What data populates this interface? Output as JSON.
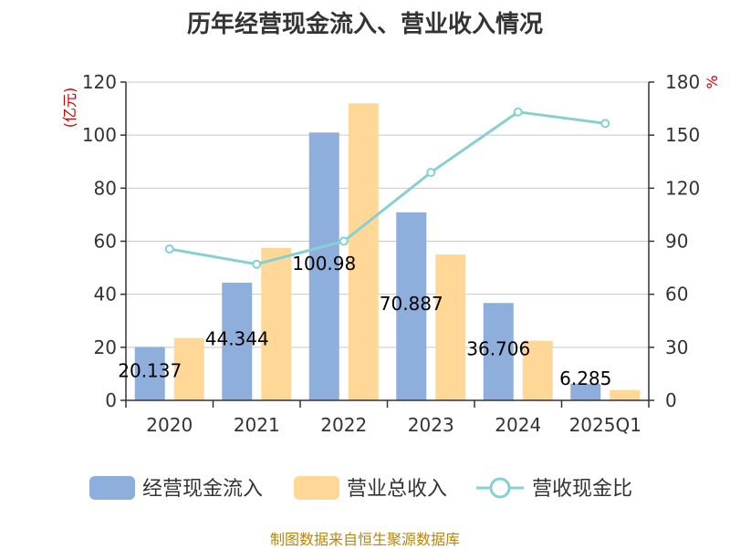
{
  "chart_data": {
    "type": "bar",
    "title": "历年经营现金流入、营业收入情况",
    "categories": [
      "2020",
      "2021",
      "2022",
      "2023",
      "2024",
      "2025Q1"
    ],
    "series": [
      {
        "name": "经营现金流入",
        "type": "bar",
        "axis": "left",
        "color": "#8eaedb",
        "values": [
          20.137,
          44.344,
          100.98,
          70.887,
          36.706,
          6.285
        ],
        "labels": [
          "20.137",
          "44.344",
          "100.98",
          "70.887",
          "36.706",
          "6.285"
        ]
      },
      {
        "name": "营业总收入",
        "type": "bar",
        "axis": "left",
        "color": "#ffd898",
        "values": [
          23.5,
          57.5,
          112.0,
          55.0,
          22.5,
          3.9
        ]
      },
      {
        "name": "营收现金比",
        "type": "line",
        "axis": "right",
        "color": "#86d0d4",
        "values": [
          85.6,
          77.0,
          90.0,
          128.9,
          163.1,
          156.6
        ]
      }
    ],
    "y_left": {
      "unit": "(亿元)",
      "ylim": [
        0,
        120
      ],
      "ticks": [
        0,
        20,
        40,
        60,
        80,
        100,
        120
      ]
    },
    "y_right": {
      "unit": "%",
      "ylim": [
        0,
        180
      ],
      "ticks": [
        0,
        30,
        60,
        90,
        120,
        150,
        180
      ]
    },
    "grid": true,
    "legend_position": "bottom"
  },
  "source_note": "制图数据来自恒生聚源数据库"
}
